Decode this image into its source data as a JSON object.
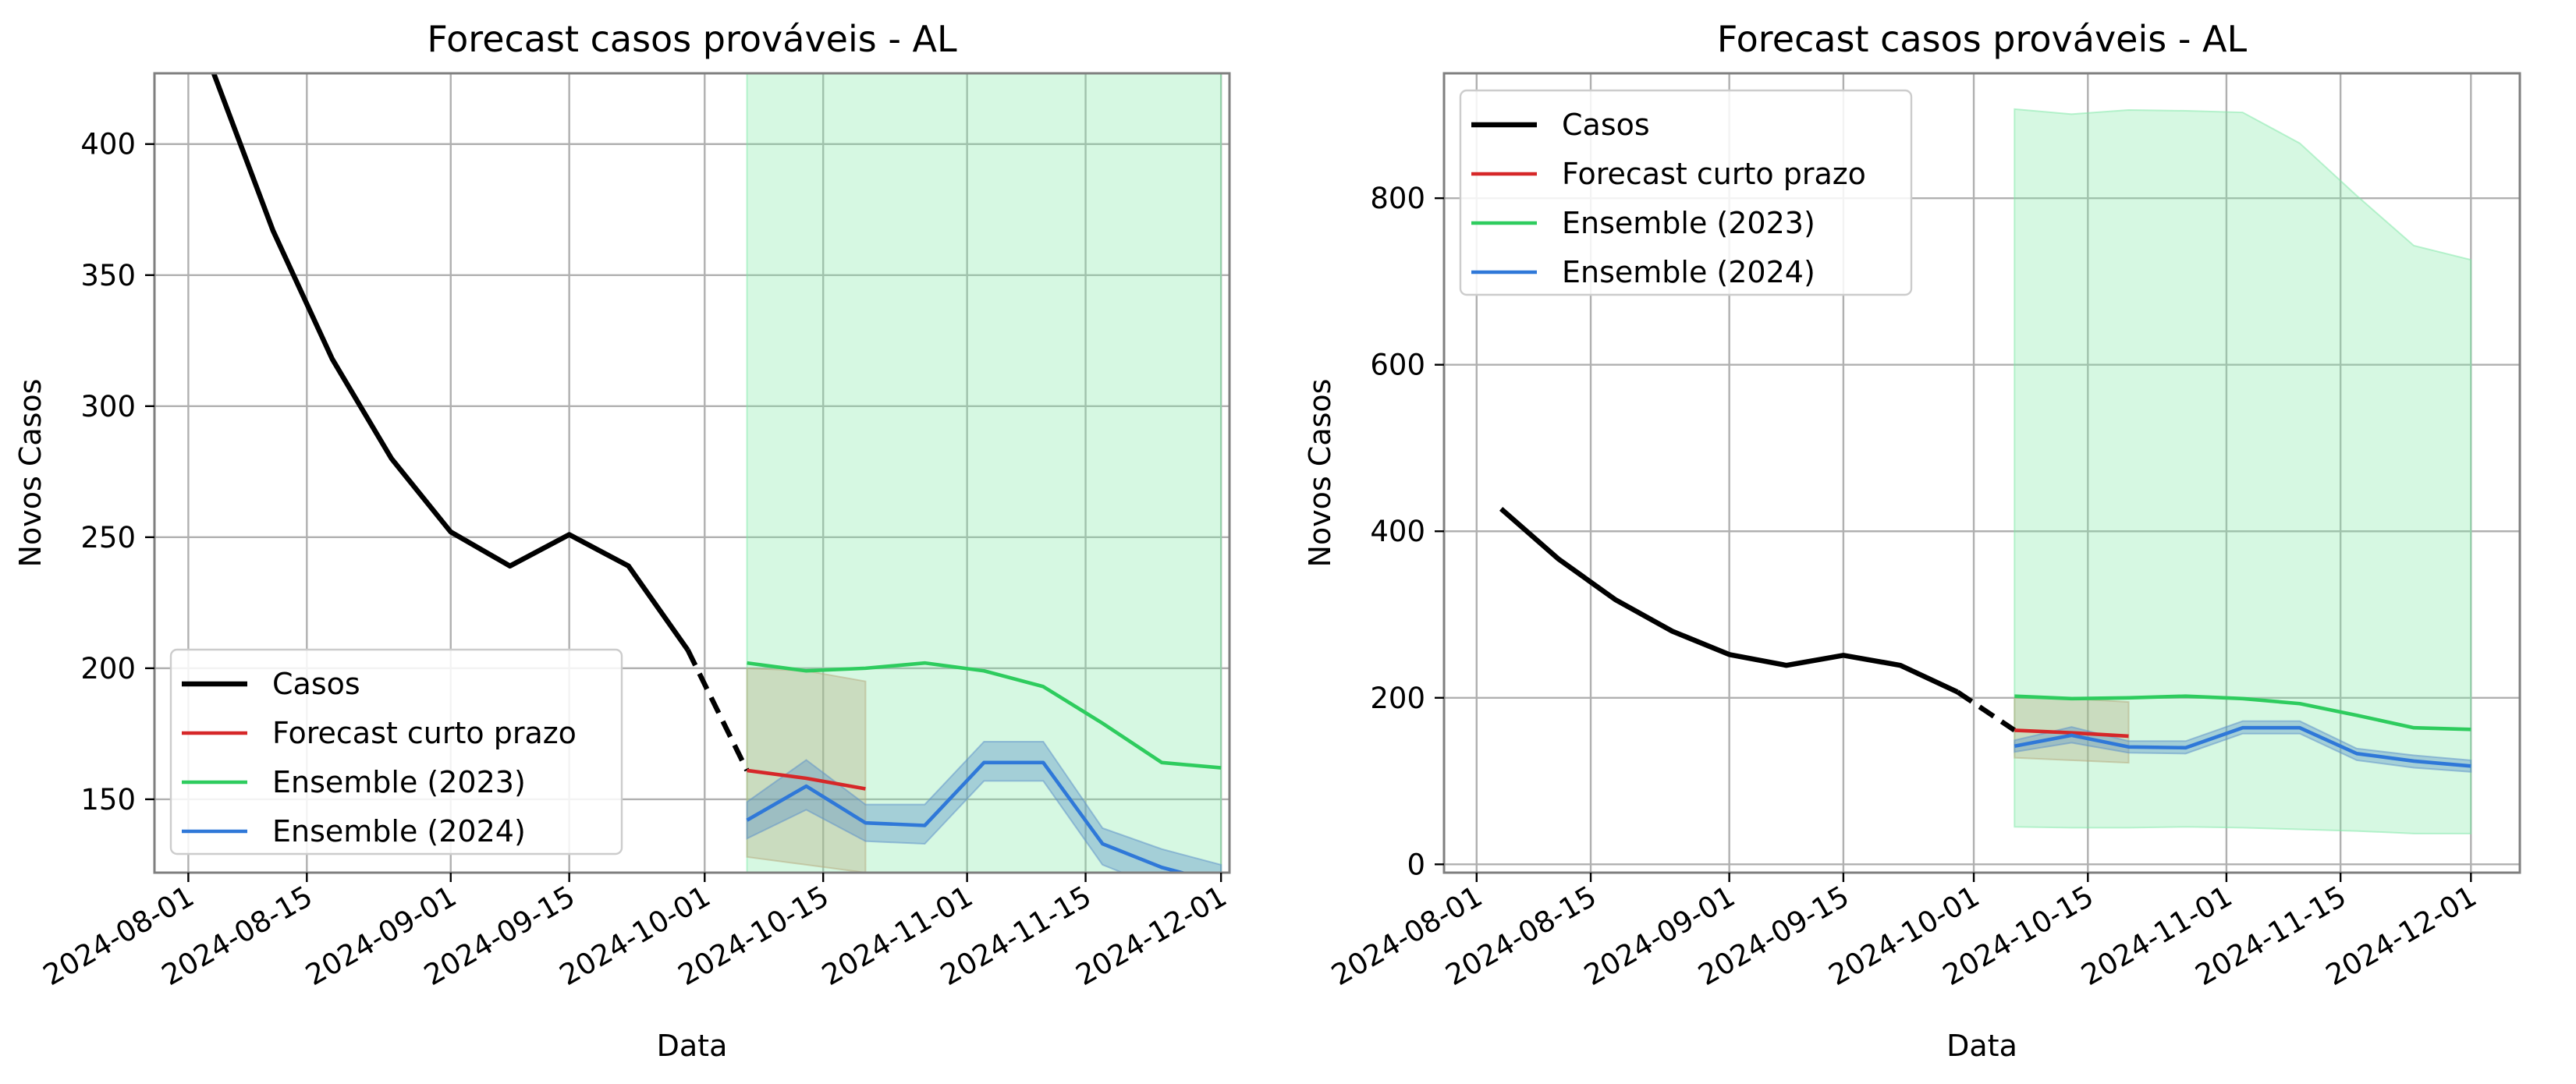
{
  "chart_data": [
    {
      "type": "line",
      "title": "Forecast casos prováveis - AL",
      "xlabel": "Data",
      "ylabel": "Novos Casos",
      "ylim": [
        122,
        427
      ],
      "xlim": [
        "2024-07-28",
        "2024-12-02"
      ],
      "grid": true,
      "legend_loc": "lower-left",
      "x_ticks": [
        "2024-08-01",
        "2024-08-15",
        "2024-09-01",
        "2024-09-15",
        "2024-10-01",
        "2024-10-15",
        "2024-11-01",
        "2024-11-15",
        "2024-12-01"
      ],
      "y_ticks": [
        150,
        200,
        250,
        300,
        350,
        400
      ],
      "series": [
        {
          "name": "Casos",
          "color": "#000000",
          "style": "solid",
          "x": [
            "2024-08-04",
            "2024-08-11",
            "2024-08-18",
            "2024-08-25",
            "2024-09-01",
            "2024-09-08",
            "2024-09-15",
            "2024-09-22",
            "2024-09-29"
          ],
          "y": [
            427,
            367,
            318,
            280,
            252,
            239,
            251,
            239,
            207
          ]
        },
        {
          "name": "",
          "color": "#000000",
          "style": "dashed",
          "x": [
            "2024-09-29",
            "2024-10-06"
          ],
          "y": [
            207,
            161
          ]
        },
        {
          "name": "Forecast curto prazo",
          "color": "#d62728",
          "style": "solid",
          "x": [
            "2024-10-06",
            "2024-10-13",
            "2024-10-20"
          ],
          "y": [
            161,
            158,
            154
          ],
          "band_lower": [
            128,
            125,
            122
          ],
          "band_upper": [
            200,
            199,
            195
          ],
          "band_color": "#b5a97e"
        },
        {
          "name": "Ensemble (2023)",
          "color": "#2ecc5e",
          "style": "solid",
          "x": [
            "2024-10-06",
            "2024-10-13",
            "2024-10-20",
            "2024-10-27",
            "2024-11-03",
            "2024-11-10",
            "2024-11-17",
            "2024-11-24",
            "2024-12-01"
          ],
          "y": [
            202,
            199,
            200,
            202,
            199,
            193,
            179,
            164,
            162
          ],
          "band_lower": [
            45,
            44,
            44,
            45,
            44,
            42,
            40,
            37,
            37
          ],
          "band_upper": [
            907,
            901,
            906,
            905,
            903,
            866,
            803,
            743,
            726
          ],
          "band_color": "#7ee8a6"
        },
        {
          "name": "Ensemble (2024)",
          "color": "#2f78d8",
          "style": "solid",
          "x": [
            "2024-10-06",
            "2024-10-13",
            "2024-10-20",
            "2024-10-27",
            "2024-11-03",
            "2024-11-10",
            "2024-11-17",
            "2024-11-24",
            "2024-12-01"
          ],
          "y": [
            142,
            155,
            141,
            140,
            164,
            164,
            133,
            124,
            118
          ],
          "band_lower": [
            135,
            146,
            134,
            133,
            157,
            157,
            125,
            116,
            111
          ],
          "band_upper": [
            149,
            165,
            148,
            148,
            172,
            172,
            139,
            131,
            125
          ],
          "band_color": "#5b90c9"
        }
      ]
    },
    {
      "type": "line",
      "title": "Forecast casos prováveis - AL",
      "xlabel": "Data",
      "ylabel": "Novos Casos",
      "ylim": [
        -10,
        950
      ],
      "xlim": [
        "2024-07-28",
        "2024-12-07"
      ],
      "grid": true,
      "legend_loc": "upper-left",
      "x_ticks": [
        "2024-08-01",
        "2024-08-15",
        "2024-09-01",
        "2024-09-15",
        "2024-10-01",
        "2024-10-15",
        "2024-11-01",
        "2024-11-15",
        "2024-12-01"
      ],
      "y_ticks": [
        0,
        200,
        400,
        600,
        800
      ],
      "series": [
        {
          "name": "Casos",
          "color": "#000000",
          "style": "solid",
          "x": [
            "2024-08-04",
            "2024-08-11",
            "2024-08-18",
            "2024-08-25",
            "2024-09-01",
            "2024-09-08",
            "2024-09-15",
            "2024-09-22",
            "2024-09-29"
          ],
          "y": [
            427,
            367,
            318,
            280,
            252,
            239,
            251,
            239,
            207
          ]
        },
        {
          "name": "",
          "color": "#000000",
          "style": "dashed",
          "x": [
            "2024-09-29",
            "2024-10-06"
          ],
          "y": [
            207,
            161
          ]
        },
        {
          "name": "Forecast curto prazo",
          "color": "#d62728",
          "style": "solid",
          "x": [
            "2024-10-06",
            "2024-10-13",
            "2024-10-20"
          ],
          "y": [
            161,
            158,
            154
          ],
          "band_lower": [
            128,
            125,
            122
          ],
          "band_upper": [
            200,
            199,
            195
          ],
          "band_color": "#b5a97e"
        },
        {
          "name": "Ensemble (2023)",
          "color": "#2ecc5e",
          "style": "solid",
          "x": [
            "2024-10-06",
            "2024-10-13",
            "2024-10-20",
            "2024-10-27",
            "2024-11-03",
            "2024-11-10",
            "2024-11-17",
            "2024-11-24",
            "2024-12-01"
          ],
          "y": [
            202,
            199,
            200,
            202,
            199,
            193,
            179,
            164,
            162
          ],
          "band_lower": [
            45,
            44,
            44,
            45,
            44,
            42,
            40,
            37,
            37
          ],
          "band_upper": [
            907,
            901,
            906,
            905,
            903,
            866,
            803,
            743,
            726
          ],
          "band_color": "#7ee8a6"
        },
        {
          "name": "Ensemble (2024)",
          "color": "#2f78d8",
          "style": "solid",
          "x": [
            "2024-10-06",
            "2024-10-13",
            "2024-10-20",
            "2024-10-27",
            "2024-11-03",
            "2024-11-10",
            "2024-11-17",
            "2024-11-24",
            "2024-12-01"
          ],
          "y": [
            142,
            155,
            141,
            140,
            164,
            164,
            133,
            124,
            118
          ],
          "band_lower": [
            135,
            146,
            134,
            133,
            157,
            157,
            125,
            116,
            111
          ],
          "band_upper": [
            149,
            165,
            148,
            148,
            172,
            172,
            139,
            131,
            125
          ],
          "band_color": "#5b90c9"
        }
      ]
    }
  ]
}
